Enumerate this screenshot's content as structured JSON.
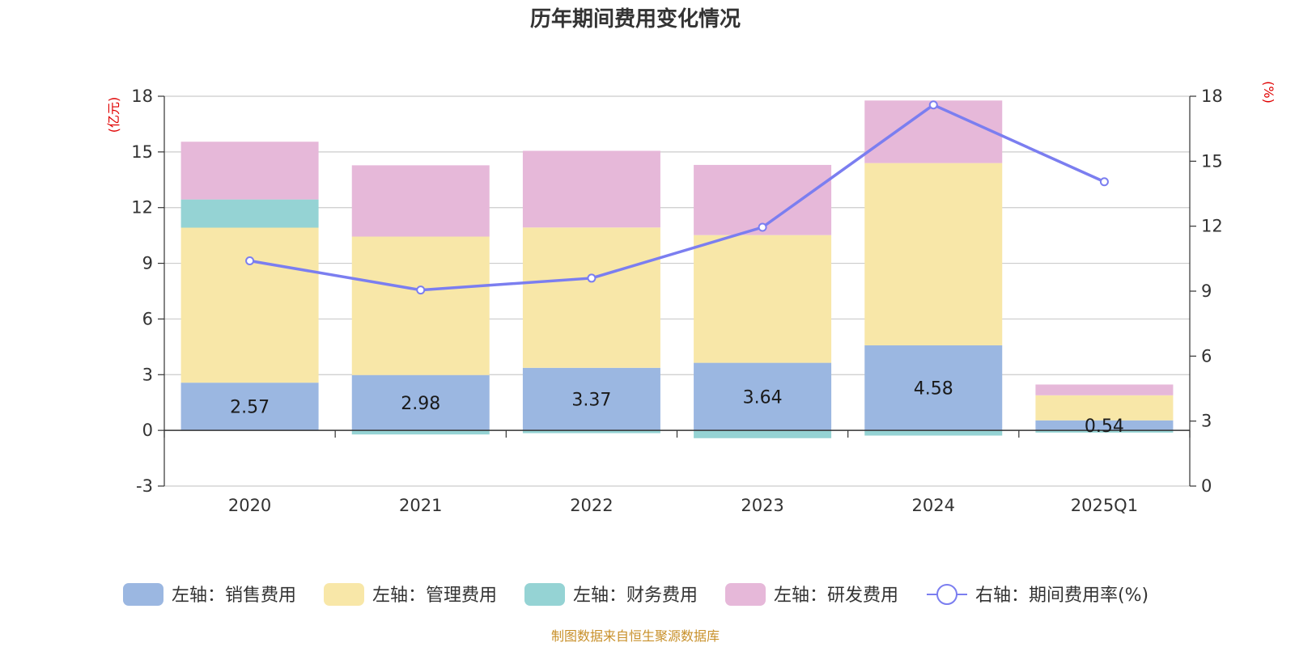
{
  "title": "历年期间费用变化情况",
  "source": "制图数据来自恒生聚源数据库",
  "colors": {
    "sales": "#9bb7e1",
    "admin": "#f8e7a8",
    "finance": "#95d3d4",
    "rd": "#e6b8d9",
    "rate": "#7b7ef0",
    "grid": "#cccccc",
    "axis": "#333333",
    "unit": "#e00000",
    "source": "#c8902a"
  },
  "chart_data": {
    "type": "bar",
    "stacked": true,
    "title": "历年期间费用变化情况",
    "categories": [
      "2020",
      "2021",
      "2022",
      "2023",
      "2024",
      "2025Q1"
    ],
    "left_axis": {
      "unit": "(亿元)",
      "ylim": [
        -3,
        18
      ],
      "ticks": [
        -3,
        0,
        3,
        6,
        9,
        12,
        15,
        18
      ]
    },
    "right_axis": {
      "unit": "(%)",
      "ylim": [
        0,
        18
      ],
      "ticks": [
        0,
        3,
        6,
        9,
        12,
        15,
        18
      ]
    },
    "series": [
      {
        "key": "sales",
        "name": "左轴：销售费用",
        "axis": "left",
        "type": "bar",
        "values": [
          2.57,
          2.98,
          3.37,
          3.64,
          4.58,
          0.54
        ],
        "labels": [
          "2.57",
          "2.98",
          "3.37",
          "3.64",
          "4.58",
          "0.54"
        ]
      },
      {
        "key": "admin",
        "name": "左轴：管理费用",
        "axis": "left",
        "type": "bar",
        "values": [
          8.35,
          7.46,
          7.56,
          6.88,
          9.82,
          1.35
        ]
      },
      {
        "key": "finance",
        "name": "左轴：财务费用",
        "axis": "left",
        "type": "bar",
        "values": [
          1.52,
          -0.22,
          -0.15,
          -0.42,
          -0.28,
          -0.12
        ]
      },
      {
        "key": "rd",
        "name": "左轴：研发费用",
        "axis": "left",
        "type": "bar",
        "values": [
          3.11,
          3.84,
          4.13,
          3.78,
          3.37,
          0.58
        ]
      },
      {
        "key": "rate",
        "name": "右轴：期间费用率(%)",
        "axis": "right",
        "type": "line",
        "values": [
          10.4,
          9.05,
          9.6,
          11.95,
          17.6,
          14.05
        ]
      }
    ],
    "legend_position": "bottom-center",
    "grid": true
  }
}
